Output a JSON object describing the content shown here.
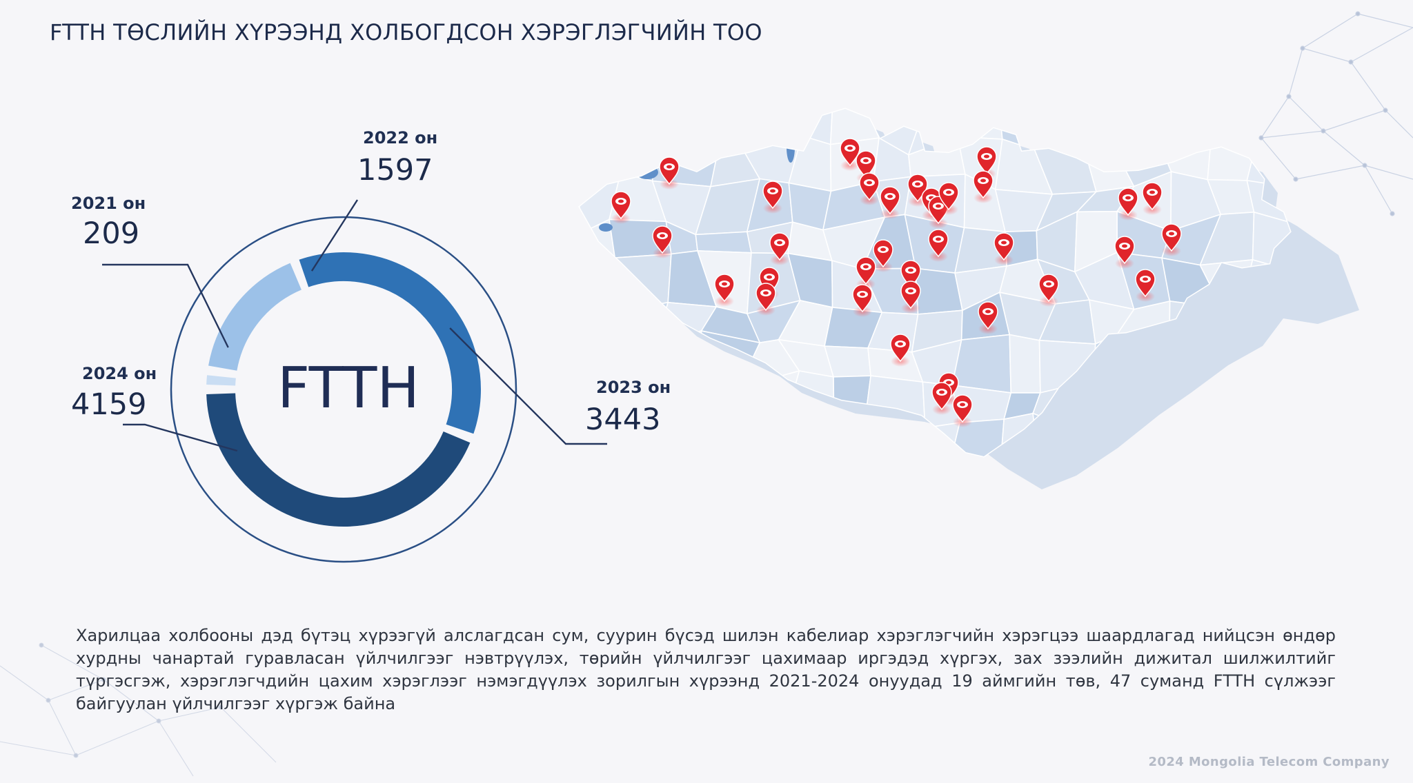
{
  "title": "FTTH ТӨСЛИЙН ХҮРЭЭНД ХОЛБОГДСОН ХЭРЭГЛЭГЧИЙН ТОО",
  "chart_data": {
    "type": "donut",
    "center_label": "FTTH",
    "categories": [
      "2021 он",
      "2022 он",
      "2023 он",
      "2024 он"
    ],
    "values": [
      209,
      1597,
      3443,
      4159
    ],
    "value_labels": [
      "209",
      "1597",
      "3443",
      "4159"
    ],
    "colors": [
      "#c9ddf3",
      "#9cc1e8",
      "#2f72b5",
      "#1f4a7a"
    ]
  },
  "map": {
    "pin_color": "#e0252b",
    "region_fill": "#dde6f2",
    "region_stroke": "#ffffff",
    "accent_regions": "#9cb8da"
  },
  "description": "Харилцаа холбооны дэд бүтэц хүрээгүй алслагдсан сум, суурин бүсэд шилэн кабелиар  хэрэглэгчийн хэрэгцээ шаардлагад нийцсэн өндөр хурдны чанартай гуравласан үйлчилгээг нэвтрүүлэх, төрийн үйлчилгээг цахимаар иргэдэд хүргэх, зах зээлийн дижитал шилжилтийг түргэсгэж, хэрэглэгчдийн цахим хэрэглээг нэмэгдүүлэх зорилгын хүрээнд 2021-2024 онуудад 19 аймгийн төв, 47 суманд  FTTH сүлжээг байгуулан үйлчилгээг хүргэж байна",
  "footer": "2024 Mongolia Telecom Company"
}
